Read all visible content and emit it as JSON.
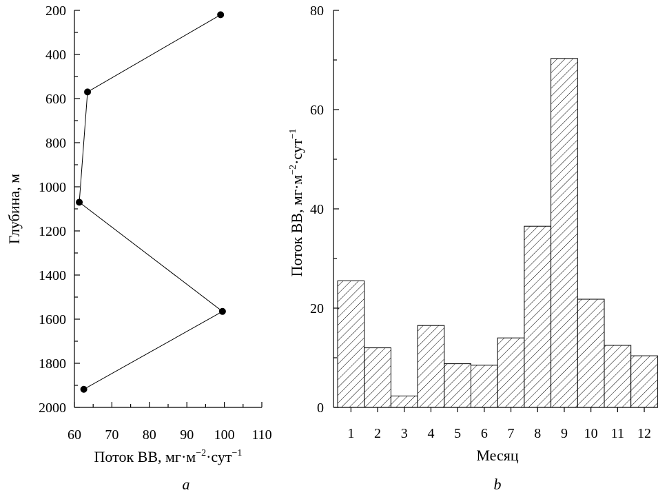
{
  "chart_data": [
    {
      "panel": "a",
      "type": "line",
      "xlabel": "Поток ВВ, мг·м",
      "xlabel_exp1": "−2",
      "xlabel_mid": "·сут",
      "xlabel_exp2": "−1",
      "ylabel": "Глубина, м",
      "xlim": [
        60,
        110
      ],
      "ylim": [
        200,
        2000
      ],
      "y_inverted": true,
      "xticks": [
        60,
        70,
        80,
        90,
        100,
        110
      ],
      "yticks": [
        200,
        400,
        600,
        800,
        1000,
        1200,
        1400,
        1600,
        1800,
        2000
      ],
      "points": [
        {
          "x": 99,
          "y": 220
        },
        {
          "x": 63.5,
          "y": 570
        },
        {
          "x": 61.3,
          "y": 1070
        },
        {
          "x": 99.5,
          "y": 1565
        },
        {
          "x": 62.5,
          "y": 1918
        }
      ],
      "color": "#000000"
    },
    {
      "panel": "b",
      "type": "bar",
      "xlabel": "Месяц",
      "ylabel": "Поток ВВ, мг·м",
      "ylabel_exp1": "−2",
      "ylabel_mid": "·сут",
      "ylabel_exp2": "−1",
      "ylim": [
        0,
        80
      ],
      "yticks": [
        0,
        20,
        40,
        60,
        80
      ],
      "categories": [
        "1",
        "2",
        "3",
        "4",
        "5",
        "6",
        "7",
        "8",
        "9",
        "10",
        "11",
        "12"
      ],
      "values": [
        25.5,
        12,
        2.3,
        16.5,
        8.8,
        8.5,
        14,
        36.5,
        70.3,
        21.8,
        12.5,
        10.4
      ],
      "fill": "hatched"
    }
  ]
}
